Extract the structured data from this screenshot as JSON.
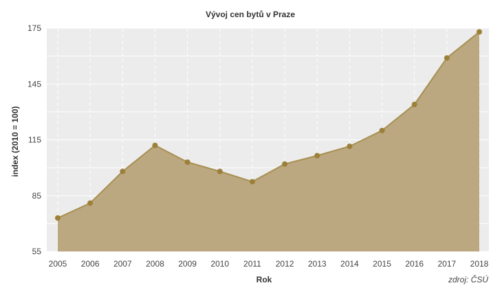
{
  "chart_data": {
    "type": "area",
    "title": "Vývoj cen bytů v Praze",
    "xlabel": "Rok",
    "ylabel": "index (2010 = 100)",
    "source": "zdroj: ČSÚ",
    "x": [
      2005,
      2006,
      2007,
      2008,
      2009,
      2010,
      2011,
      2012,
      2013,
      2014,
      2015,
      2016,
      2017,
      2018
    ],
    "series": [
      {
        "values": [
          73,
          81,
          98,
          112,
          103,
          98,
          92.5,
          102,
          106.5,
          111.5,
          120,
          134,
          159,
          173
        ]
      }
    ],
    "ylim": [
      55,
      175
    ],
    "yticks": [
      55,
      85,
      115,
      145,
      175
    ],
    "grid": true,
    "colors": {
      "fill": "#b8a47a",
      "line": "#a88f50",
      "marker": "#9c8039",
      "plot_background": "#ececec",
      "gridline": "#ffffff"
    }
  }
}
